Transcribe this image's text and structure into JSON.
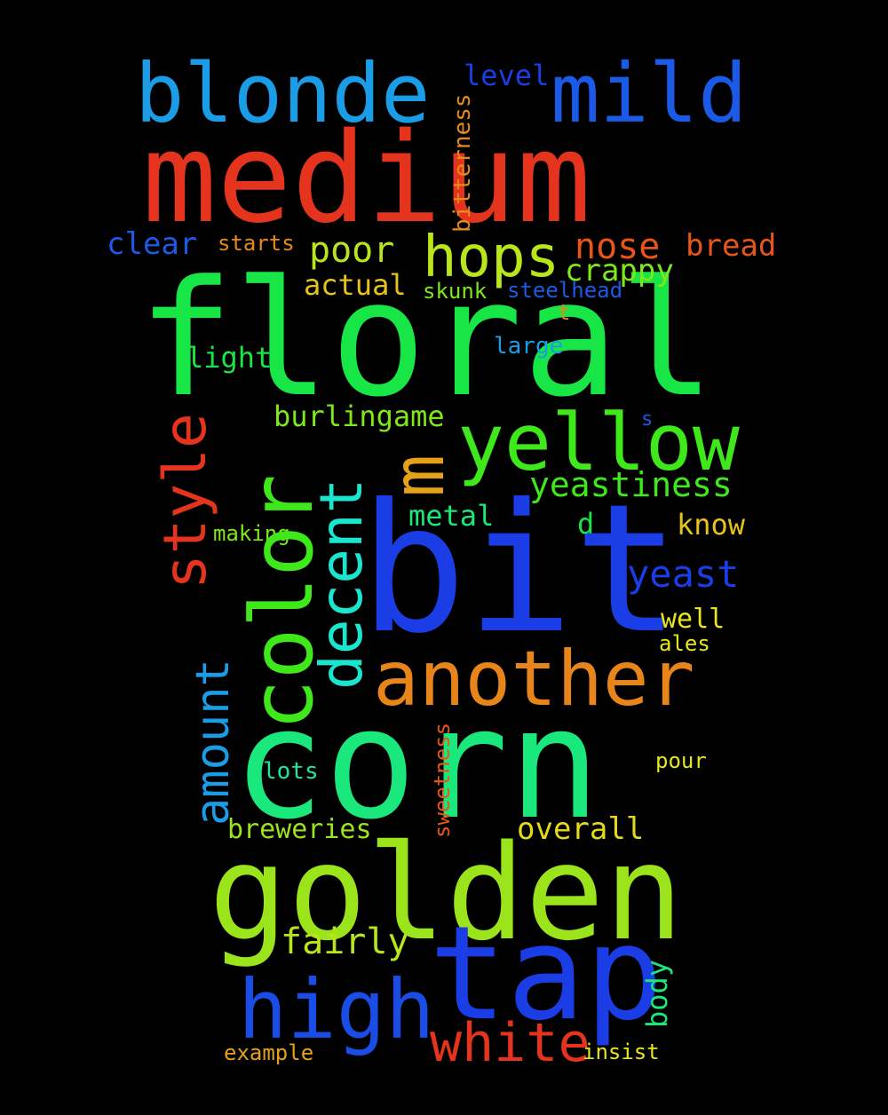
{
  "words": [
    {
      "text": "medium",
      "color": "#e4341e"
    },
    {
      "text": "floral",
      "color": "#18e646"
    },
    {
      "text": "bit",
      "color": "#1a3de6"
    },
    {
      "text": "corn",
      "color": "#1ae87c"
    },
    {
      "text": "golden",
      "color": "#9be31a"
    },
    {
      "text": "tap",
      "color": "#1a3de6"
    },
    {
      "text": "another",
      "color": "#e8851a"
    },
    {
      "text": "color",
      "color": "#3ee81a"
    },
    {
      "text": "yellow",
      "color": "#3ee81a"
    },
    {
      "text": "blonde",
      "color": "#1a9de6"
    },
    {
      "text": "mild",
      "color": "#1a5ae6"
    },
    {
      "text": "high",
      "color": "#1a4de6"
    },
    {
      "text": "m",
      "color": "#e6a11a"
    },
    {
      "text": "hops",
      "color": "#b9e61a"
    },
    {
      "text": "white",
      "color": "#e4341e"
    },
    {
      "text": "style",
      "color": "#e4341e"
    },
    {
      "text": "decent",
      "color": "#1ae6cf"
    },
    {
      "text": "amount",
      "color": "#1a9de6"
    },
    {
      "text": "nose",
      "color": "#e8551a"
    },
    {
      "text": "yeastiness",
      "color": "#3ee81a"
    },
    {
      "text": "yeast",
      "color": "#1a3de6"
    },
    {
      "text": "poor",
      "color": "#b9e61a"
    },
    {
      "text": "fairly",
      "color": "#b9e61a"
    },
    {
      "text": "bread",
      "color": "#e8551a"
    },
    {
      "text": "crappy",
      "color": "#7ee81a"
    },
    {
      "text": "burlingame",
      "color": "#7ee81a"
    },
    {
      "text": "actual",
      "color": "#e6c31a"
    },
    {
      "text": "light",
      "color": "#18e646"
    },
    {
      "text": "clear",
      "color": "#1a5ae6"
    },
    {
      "text": "metal",
      "color": "#1ae87c"
    },
    {
      "text": "overall",
      "color": "#e6d91a"
    },
    {
      "text": "breweries",
      "color": "#9be31a"
    },
    {
      "text": "know",
      "color": "#e6c31a"
    },
    {
      "text": "level",
      "color": "#1a3de6"
    },
    {
      "text": "body",
      "color": "#1ae87c"
    },
    {
      "text": "bitterness",
      "color": "#e68a1a"
    },
    {
      "text": "sweetness",
      "color": "#e8551a"
    },
    {
      "text": "well",
      "color": "#e6e61a"
    },
    {
      "text": "skunk",
      "color": "#7ee81a"
    },
    {
      "text": "steelhead",
      "color": "#1a5ae6"
    },
    {
      "text": "large",
      "color": "#1a9de6"
    },
    {
      "text": "starts",
      "color": "#e68a1a"
    },
    {
      "text": "making",
      "color": "#7ee81a"
    },
    {
      "text": "lots",
      "color": "#1ae6a0"
    },
    {
      "text": "pour",
      "color": "#e6e61a"
    },
    {
      "text": "ales",
      "color": "#e6e61a"
    },
    {
      "text": "d",
      "color": "#18e646"
    },
    {
      "text": "insist",
      "color": "#e6e61a"
    },
    {
      "text": "example",
      "color": "#e6a11a"
    },
    {
      "text": "t",
      "color": "#e68a1a"
    },
    {
      "text": "s",
      "color": "#1a5ae6"
    }
  ]
}
